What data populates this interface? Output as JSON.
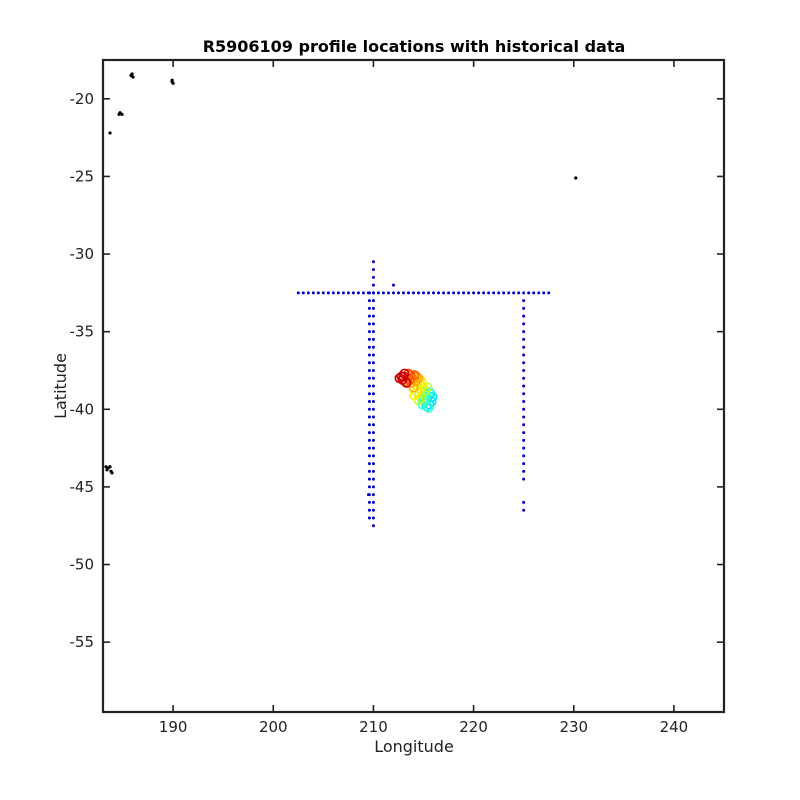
{
  "chart_data": {
    "type": "scatter",
    "title": "R5906109 profile locations with historical data",
    "xlabel": "Longitude",
    "ylabel": "Latitude",
    "xlim": [
      183,
      245
    ],
    "ylim": [
      -59.5,
      -17.5
    ],
    "xticks": [
      190,
      200,
      210,
      220,
      230,
      240
    ],
    "yticks": [
      -55,
      -50,
      -45,
      -40,
      -35,
      -30,
      -25,
      -20
    ],
    "xtick_labels": [
      "190",
      "200",
      "210",
      "220",
      "230",
      "240"
    ],
    "ytick_labels": [
      "-55",
      "-50",
      "-45",
      "-40",
      "-35",
      "-30",
      "-25",
      "-20"
    ],
    "grid": false,
    "colors": {
      "land": "#000000",
      "historical": "#0000cc",
      "profile_ramp": [
        "#00e5ff",
        "#33ffcc",
        "#b3ff33",
        "#ffee00",
        "#ffaa00",
        "#ff5500",
        "#cc0000"
      ]
    },
    "series": [
      {
        "kind": "land",
        "points": [
          [
            185.9,
            -18.4
          ],
          [
            186.0,
            -18.6
          ],
          [
            185.8,
            -18.5
          ],
          [
            189.9,
            -18.8
          ],
          [
            190.0,
            -19.0
          ],
          [
            189.9,
            -18.9
          ],
          [
            184.6,
            -21.0
          ],
          [
            184.9,
            -21.0
          ],
          [
            184.7,
            -20.9
          ],
          [
            183.7,
            -22.2
          ],
          [
            230.2,
            -25.1
          ],
          [
            183.3,
            -43.7
          ],
          [
            183.5,
            -43.8
          ],
          [
            183.7,
            -43.7
          ],
          [
            183.8,
            -44.0
          ],
          [
            183.9,
            -44.1
          ],
          [
            183.4,
            -43.9
          ]
        ]
      },
      {
        "kind": "historical",
        "lines": [
          {
            "axis": "lat",
            "lat": -32.5,
            "from": 202.5,
            "to": 227.5,
            "step": 0.5
          },
          {
            "axis": "lon",
            "lon": 209.6,
            "from": -47.0,
            "to": -32.5,
            "step": 0.5
          },
          {
            "axis": "lon",
            "lon": 210.0,
            "from": -47.5,
            "to": -30.5,
            "step": 0.5
          },
          {
            "axis": "lon",
            "lon": 225.0,
            "from": -44.5,
            "to": -33.0,
            "step": 0.5
          }
        ],
        "points": [
          [
            212.0,
            -32.0
          ],
          [
            225.0,
            -46.0
          ],
          [
            225.0,
            -46.5
          ],
          [
            209.5,
            -45.5
          ]
        ]
      },
      {
        "kind": "profiles",
        "values": [
          [
            215.8,
            -39.5
          ],
          [
            215.6,
            -39.7
          ],
          [
            215.4,
            -39.3
          ],
          [
            215.7,
            -39.0
          ],
          [
            215.3,
            -39.8
          ],
          [
            215.9,
            -39.2
          ],
          [
            215.1,
            -39.5
          ],
          [
            215.5,
            -39.9
          ],
          [
            215.2,
            -39.1
          ],
          [
            215.0,
            -39.4
          ],
          [
            215.6,
            -38.9
          ],
          [
            214.9,
            -39.7
          ],
          [
            214.8,
            -39.3
          ],
          [
            215.2,
            -38.8
          ],
          [
            214.6,
            -39.0
          ],
          [
            215.4,
            -38.6
          ],
          [
            214.7,
            -38.7
          ],
          [
            214.5,
            -39.4
          ],
          [
            214.9,
            -38.5
          ],
          [
            214.3,
            -38.9
          ],
          [
            214.6,
            -38.3
          ],
          [
            214.1,
            -39.1
          ],
          [
            214.4,
            -38.5
          ],
          [
            214.8,
            -38.2
          ],
          [
            214.2,
            -38.2
          ],
          [
            214.0,
            -38.6
          ],
          [
            214.5,
            -38.0
          ],
          [
            213.8,
            -38.3
          ],
          [
            214.3,
            -37.9
          ],
          [
            213.9,
            -38.0
          ],
          [
            213.6,
            -38.1
          ],
          [
            214.1,
            -37.8
          ],
          [
            213.4,
            -38.0
          ],
          [
            213.7,
            -37.8
          ],
          [
            213.2,
            -38.2
          ],
          [
            213.5,
            -37.7
          ],
          [
            213.0,
            -37.9
          ],
          [
            213.3,
            -38.3
          ],
          [
            212.9,
            -38.1
          ],
          [
            213.1,
            -37.7
          ],
          [
            212.8,
            -37.9
          ],
          [
            212.6,
            -38.0
          ]
        ]
      }
    ]
  }
}
